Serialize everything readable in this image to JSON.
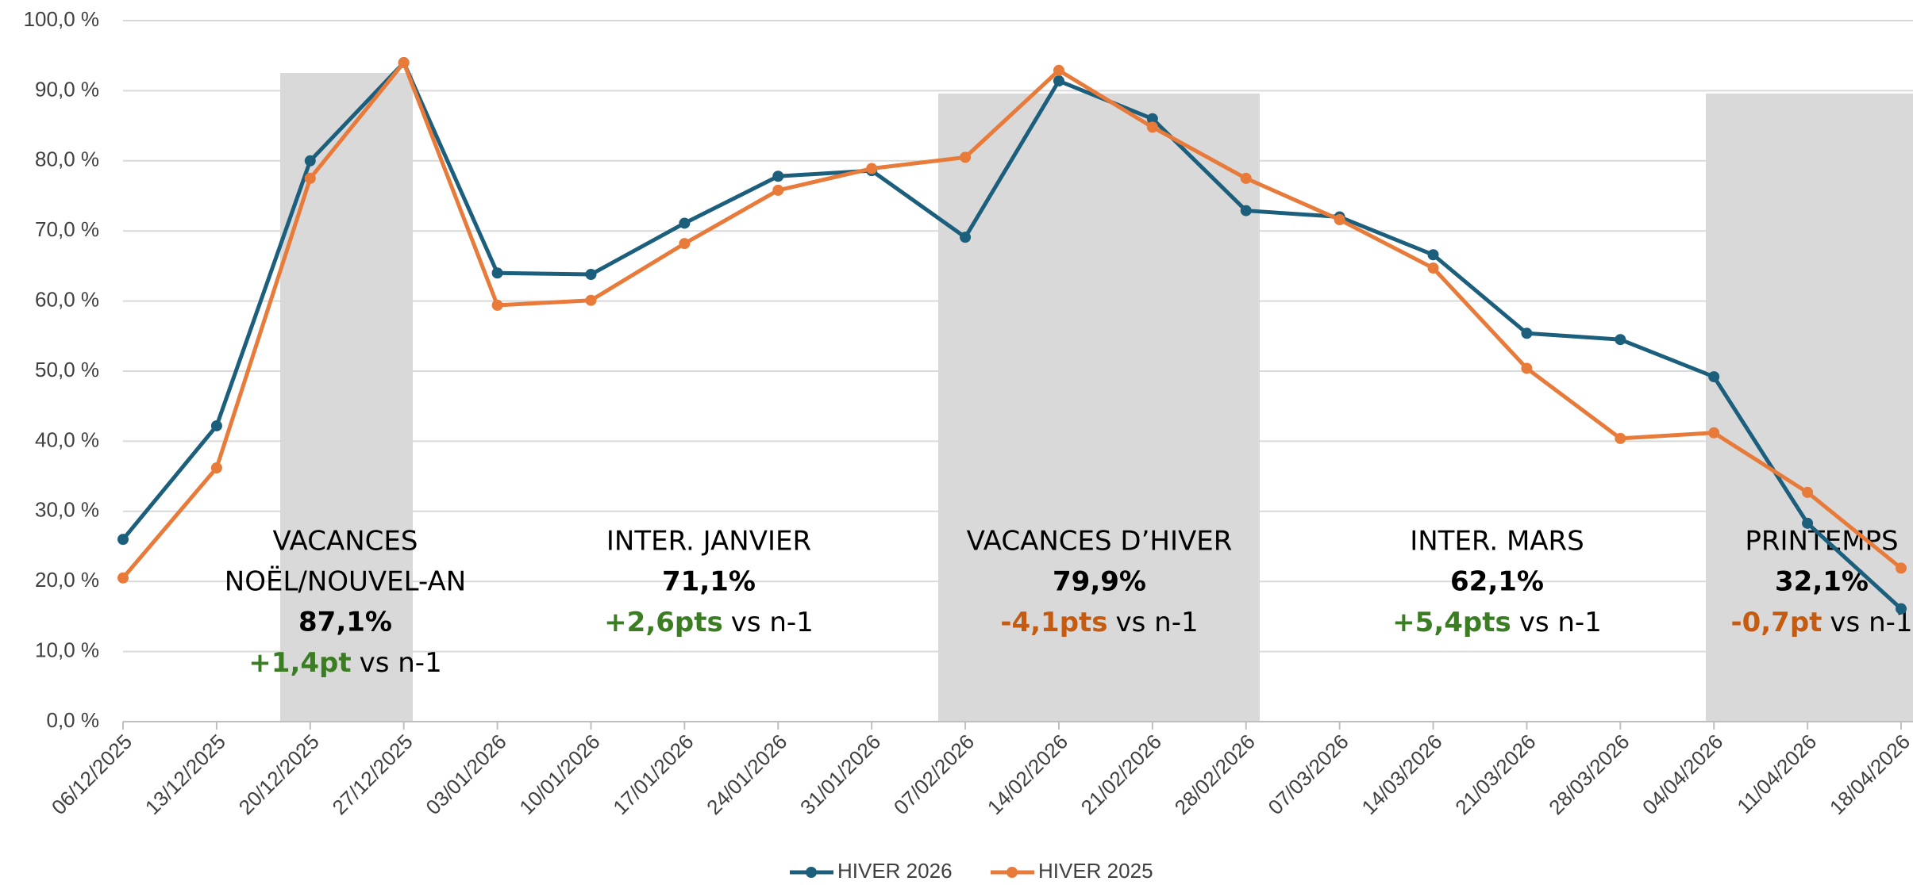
{
  "chart_data": {
    "type": "line",
    "categories": [
      "06/12/2025",
      "13/12/2025",
      "20/12/2025",
      "27/12/2025",
      "03/01/2026",
      "10/01/2026",
      "17/01/2026",
      "24/01/2026",
      "31/01/2026",
      "07/02/2026",
      "14/02/2026",
      "21/02/2026",
      "28/02/2026",
      "07/03/2026",
      "14/03/2026",
      "21/03/2026",
      "28/03/2026",
      "04/04/2026",
      "11/04/2026",
      "18/04/2026"
    ],
    "series": [
      {
        "name": "HIVER 2026",
        "color": "#1b5f7d",
        "values": [
          26.0,
          42.2,
          80.0,
          94.0,
          64.0,
          63.8,
          71.1,
          77.8,
          78.6,
          69.1,
          91.4,
          86.0,
          72.9,
          72.0,
          66.6,
          55.4,
          54.5,
          49.2,
          28.3,
          16.1
        ]
      },
      {
        "name": "HIVER 2025",
        "color": "#e87a3a",
        "values": [
          20.5,
          36.2,
          77.5,
          94.0,
          59.4,
          60.1,
          68.2,
          75.8,
          78.9,
          80.5,
          92.9,
          84.8,
          77.5,
          71.6,
          64.7,
          50.4,
          40.4,
          41.2,
          32.7,
          21.9
        ]
      }
    ],
    "ylim": [
      0,
      100
    ],
    "yticks": [
      {
        "value": 0,
        "label": "0,0 %"
      },
      {
        "value": 10,
        "label": "10,0 %"
      },
      {
        "value": 20,
        "label": "20,0 %"
      },
      {
        "value": 30,
        "label": "30,0 %"
      },
      {
        "value": 40,
        "label": "40,0 %"
      },
      {
        "value": 50,
        "label": "50,0 %"
      },
      {
        "value": 60,
        "label": "60,0 %"
      },
      {
        "value": 70,
        "label": "70,0 %"
      },
      {
        "value": 80,
        "label": "80,0 %"
      },
      {
        "value": 90,
        "label": "90,0 %"
      },
      {
        "value": 100,
        "label": "100,0 %"
      }
    ],
    "grid": true,
    "legend": "bottom",
    "annotations": [
      {
        "lines": [
          "VACANCES",
          "NOËL/NOUVEL-AN"
        ],
        "rate": "87,1%",
        "delta": "+1,4pt",
        "delta_color": "#3a7d22",
        "suffix": "vs n-1"
      },
      {
        "lines": [
          "INTER. JANVIER"
        ],
        "rate": "71,1%",
        "delta": "+2,6pts",
        "delta_color": "#3a7d22",
        "suffix": "vs n-1"
      },
      {
        "lines": [
          "VACANCES D’HIVER"
        ],
        "rate": "79,9%",
        "delta": "-4,1pts",
        "delta_color": "#c55a11",
        "suffix": "vs n-1"
      },
      {
        "lines": [
          "INTER. MARS"
        ],
        "rate": "62,1%",
        "delta": "+5,4pts",
        "delta_color": "#3a7d22",
        "suffix": "vs n-1"
      },
      {
        "lines": [
          "PRINTEMPS"
        ],
        "rate": "32,1%",
        "delta": "-0,7pt",
        "delta_color": "#c55a11",
        "suffix": "vs n-1"
      }
    ]
  }
}
